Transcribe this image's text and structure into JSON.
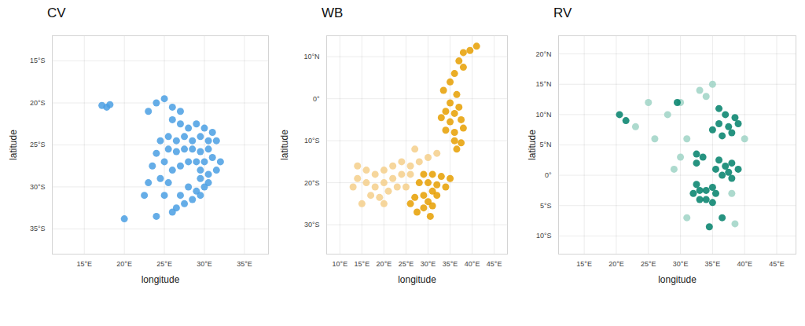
{
  "chart_data": [
    {
      "type": "scatter",
      "title": "CV",
      "x_label": "longitude",
      "y_label": "latitude",
      "grid": true,
      "xlim": [
        11,
        38
      ],
      "ylim": [
        -38,
        -12
      ],
      "xticks": [
        {
          "value": 15,
          "label": "15°E"
        },
        {
          "value": 20,
          "label": "20°E"
        },
        {
          "value": 25,
          "label": "25°E"
        },
        {
          "value": 30,
          "label": "30°E"
        },
        {
          "value": 35,
          "label": "35°E"
        }
      ],
      "yticks": [
        {
          "value": -15,
          "label": "15°S"
        },
        {
          "value": -20,
          "label": "20°S"
        },
        {
          "value": -25,
          "label": "25°S"
        },
        {
          "value": -30,
          "label": "30°S"
        },
        {
          "value": -35,
          "label": "35°S"
        }
      ],
      "series": [
        {
          "color": "#4a9fe3",
          "x": [
            17.2,
            17.8,
            18.2,
            23,
            24,
            25,
            26,
            27,
            26,
            27,
            28,
            29,
            30,
            31,
            31.5,
            30.5,
            29.5,
            28.5,
            27.5,
            26.5,
            25.5,
            24.5,
            25.5,
            26.5,
            27.5,
            28.5,
            29.5,
            30.5,
            31,
            30,
            29,
            28,
            27,
            26,
            25,
            24,
            23.5,
            24.5,
            25.5,
            29.5,
            30.5,
            31.5,
            32,
            29.5,
            30,
            29,
            28.5,
            27.5,
            26.5,
            29.5,
            30.5,
            28,
            27,
            23,
            22.5,
            25,
            26,
            24,
            20
          ],
          "y": [
            -20.3,
            -20.5,
            -20.2,
            -21,
            -20,
            -19.5,
            -20.5,
            -21,
            -22,
            -22.5,
            -23,
            -22.5,
            -23,
            -23.5,
            -24.5,
            -24.5,
            -24,
            -24.5,
            -24,
            -24.5,
            -24,
            -24.5,
            -25.5,
            -25.8,
            -25.5,
            -25.5,
            -25.8,
            -25.5,
            -26.5,
            -27,
            -27,
            -27,
            -27.5,
            -28,
            -27,
            -26,
            -27.5,
            -29,
            -29.5,
            -28,
            -28.5,
            -28,
            -27,
            -29,
            -30,
            -30.5,
            -31.5,
            -32,
            -32.5,
            -31,
            -29.5,
            -30,
            -31,
            -29.5,
            -31,
            -31,
            -33,
            -33.5,
            -33.8
          ]
        }
      ]
    },
    {
      "type": "scatter",
      "title": "WB",
      "x_label": "longitude",
      "y_label": "latitude",
      "grid": true,
      "xlim": [
        7,
        48
      ],
      "ylim": [
        -37,
        15
      ],
      "xticks": [
        {
          "value": 10,
          "label": "10°E"
        },
        {
          "value": 15,
          "label": "15°E"
        },
        {
          "value": 20,
          "label": "20°E"
        },
        {
          "value": 25,
          "label": "25°E"
        },
        {
          "value": 30,
          "label": "30°E"
        },
        {
          "value": 35,
          "label": "35°E"
        },
        {
          "value": 40,
          "label": "40°E"
        },
        {
          "value": 45,
          "label": "45°E"
        }
      ],
      "yticks": [
        {
          "value": 10,
          "label": "10°N"
        },
        {
          "value": 0,
          "label": "0°"
        },
        {
          "value": -10,
          "label": "10°S"
        },
        {
          "value": -20,
          "label": "20°S"
        },
        {
          "value": -30,
          "label": "30°S"
        }
      ],
      "series": [
        {
          "color": "#f4cf8b",
          "x": [
            14,
            16,
            18,
            20,
            22,
            24,
            26,
            28,
            30,
            14,
            16,
            18,
            20,
            22,
            24,
            26,
            17,
            19,
            21,
            23,
            25,
            13,
            15,
            20,
            32,
            27
          ],
          "y": [
            -16,
            -17,
            -18,
            -17,
            -16,
            -15,
            -16,
            -15,
            -14,
            -19,
            -20,
            -21,
            -20,
            -19,
            -18,
            -18,
            -23,
            -23.5,
            -22,
            -21,
            -21,
            -21,
            -25,
            -25,
            -13,
            -12
          ]
        },
        {
          "color": "#e69f00",
          "x": [
            38,
            39.5,
            41,
            37,
            38,
            36,
            35,
            33.5,
            36.5,
            35,
            37,
            34,
            36,
            33,
            35,
            37.5,
            38,
            36,
            34,
            36,
            37.5,
            36.5,
            31,
            29,
            28,
            30,
            32,
            31,
            32,
            29,
            27,
            30,
            31,
            29,
            27.5,
            30.5,
            26,
            33,
            35,
            34
          ],
          "y": [
            11,
            11.5,
            12.5,
            9,
            7.5,
            6,
            4,
            2,
            1,
            -1,
            -2,
            -3,
            -3.5,
            -4.5,
            -5.5,
            -5,
            -7,
            -8,
            -7.5,
            -10,
            -10.5,
            -12,
            -18,
            -18,
            -20,
            -20,
            -20.5,
            -22,
            -23,
            -23,
            -23.5,
            -24.5,
            -25.5,
            -26,
            -27,
            -28,
            -25,
            -18.5,
            -19,
            -21
          ]
        }
      ]
    },
    {
      "type": "scatter",
      "title": "RV",
      "x_label": "longitude",
      "y_label": "latitude",
      "grid": true,
      "xlim": [
        11,
        48
      ],
      "ylim": [
        -13,
        23
      ],
      "xticks": [
        {
          "value": 15,
          "label": "15°E"
        },
        {
          "value": 20,
          "label": "20°E"
        },
        {
          "value": 25,
          "label": "25°E"
        },
        {
          "value": 30,
          "label": "30°E"
        },
        {
          "value": 35,
          "label": "35°E"
        },
        {
          "value": 40,
          "label": "40°E"
        },
        {
          "value": 45,
          "label": "45°E"
        }
      ],
      "yticks": [
        {
          "value": 20,
          "label": "20°N"
        },
        {
          "value": 15,
          "label": "15°N"
        },
        {
          "value": 10,
          "label": "10°N"
        },
        {
          "value": 5,
          "label": "5°N"
        },
        {
          "value": 0,
          "label": "0°"
        },
        {
          "value": -5,
          "label": "5°S"
        },
        {
          "value": -10,
          "label": "10°S"
        }
      ],
      "series": [
        {
          "color": "#9fd3c6",
          "x": [
            25,
            28,
            30,
            33,
            35,
            34,
            23,
            26,
            31,
            38,
            38.5,
            31,
            40,
            29,
            30
          ],
          "y": [
            12,
            10,
            12,
            14,
            15,
            13,
            8,
            6,
            6,
            -3,
            -8,
            -7,
            6,
            1,
            3
          ]
        },
        {
          "color": "#00806a",
          "x": [
            36,
            37,
            38.5,
            36,
            37.5,
            39,
            38,
            36.5,
            35,
            32.5,
            33.5,
            32.5,
            36,
            37,
            38,
            39,
            37.5,
            36.5,
            38,
            35.5,
            35,
            34,
            33,
            32,
            33,
            34,
            35,
            35.5,
            32.5,
            36.5,
            34.5,
            21.5,
            20.5,
            29.5
          ],
          "y": [
            11,
            10,
            9.5,
            8.5,
            8,
            8.5,
            7,
            6.5,
            7.5,
            3.5,
            3,
            2,
            2.5,
            1.5,
            2,
            1,
            0.5,
            0,
            -0.5,
            1,
            -2,
            -2.5,
            -2.5,
            -3,
            -4,
            -4,
            -4.5,
            -3,
            -1.5,
            -7,
            -8.5,
            9,
            10,
            12
          ]
        }
      ]
    }
  ]
}
